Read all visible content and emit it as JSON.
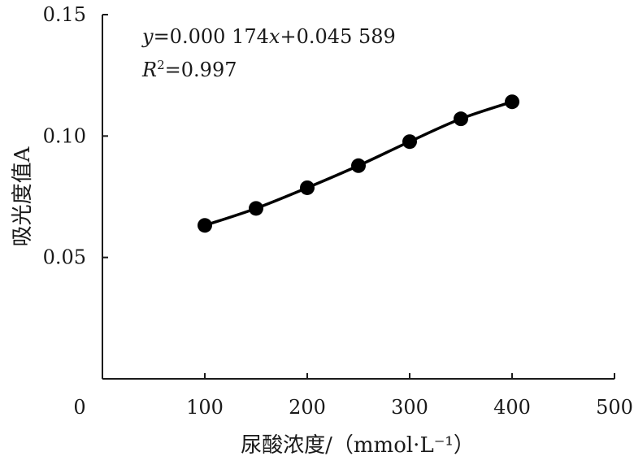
{
  "chart_data": {
    "type": "line",
    "title": "",
    "xlabel": "尿酸浓度/（mmol·L⁻¹）",
    "ylabel": "吸光度值A",
    "xlim": [
      0,
      500
    ],
    "ylim": [
      0,
      0.15
    ],
    "x_ticks": [
      "0",
      "100",
      "200",
      "300",
      "400",
      "500"
    ],
    "y_ticks": [
      "0.05",
      "0.10",
      "0.15"
    ],
    "grid": false,
    "legend": "none",
    "series": [
      {
        "x": [
          100,
          150,
          200,
          250,
          300,
          350,
          400
        ],
        "y": [
          0.0632,
          0.0702,
          0.0787,
          0.0878,
          0.0977,
          0.1071,
          0.1141
        ],
        "color": "#000000",
        "marker": "circle"
      }
    ],
    "annotations": {
      "equation": "y=0.000 174x+0.045 589",
      "r_squared": "R²=0.997"
    }
  }
}
